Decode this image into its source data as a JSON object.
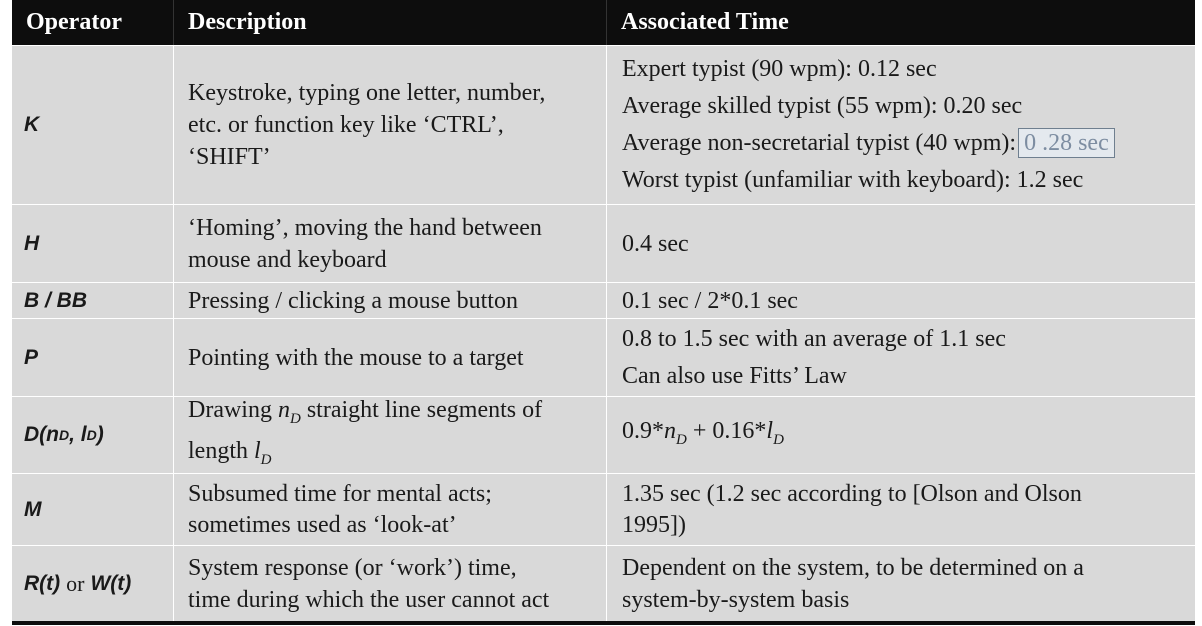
{
  "header": {
    "operator": "Operator",
    "description": "Description",
    "time": "Associated Time"
  },
  "rows": [
    {
      "op": "K",
      "desc": [
        "Keystroke, typing one letter, number,",
        "etc. or function key like ‘CTRL’,",
        "‘SHIFT’"
      ],
      "time": [
        "Expert typist (90 wpm): 0.12 sec",
        "Average skilled typist (55 wpm): 0.20 sec",
        "Average non-secretarial typist (40 wpm):",
        "Worst typist (unfamiliar with keyboard): 1.2 sec"
      ],
      "time_highlight": "0 .28 sec"
    },
    {
      "op": "H",
      "desc": [
        "‘Homing’, moving the hand between",
        "mouse and keyboard"
      ],
      "time": [
        "0.4 sec"
      ]
    },
    {
      "op": "B / BB",
      "desc": [
        "Pressing / clicking a mouse button"
      ],
      "time": [
        "0.1 sec / 2*0.1 sec"
      ]
    },
    {
      "op": "P",
      "desc": [
        "Pointing with the mouse to a target"
      ],
      "time": [
        "0.8 to 1.5 sec with an average of 1.1 sec",
        "Can also use Fitts’ Law"
      ]
    },
    {
      "op": "D(n",
      "op_sub1": "D",
      "op_mid": ", l",
      "op_sub2": "D",
      "op_end": ")",
      "desc_a": "Drawing ",
      "desc_var": "n",
      "desc_var_sub": "D",
      "desc_b": " straight line segments of",
      "desc_c": "length ",
      "desc_var2": "l",
      "desc_var2_sub": "D",
      "time_a": "0.9*",
      "time_var": "n",
      "time_var_sub": "D",
      "time_b": " + 0.16*",
      "time_var2": "l",
      "time_var2_sub": "D"
    },
    {
      "op": "M",
      "desc": [
        "Subsumed time for mental acts;",
        "sometimes used as ‘look-at’"
      ],
      "time": [
        "1.35 sec (1.2 sec according to [Olson and Olson",
        "1995])"
      ]
    },
    {
      "op_a": "R(t)",
      "op_or": "or",
      "op_b": "W(t)",
      "desc": [
        "System response (or ‘work’) time,",
        "time during which the user cannot act"
      ],
      "time": [
        "Dependent on the system, to be determined on a",
        "system-by-system basis"
      ]
    }
  ]
}
